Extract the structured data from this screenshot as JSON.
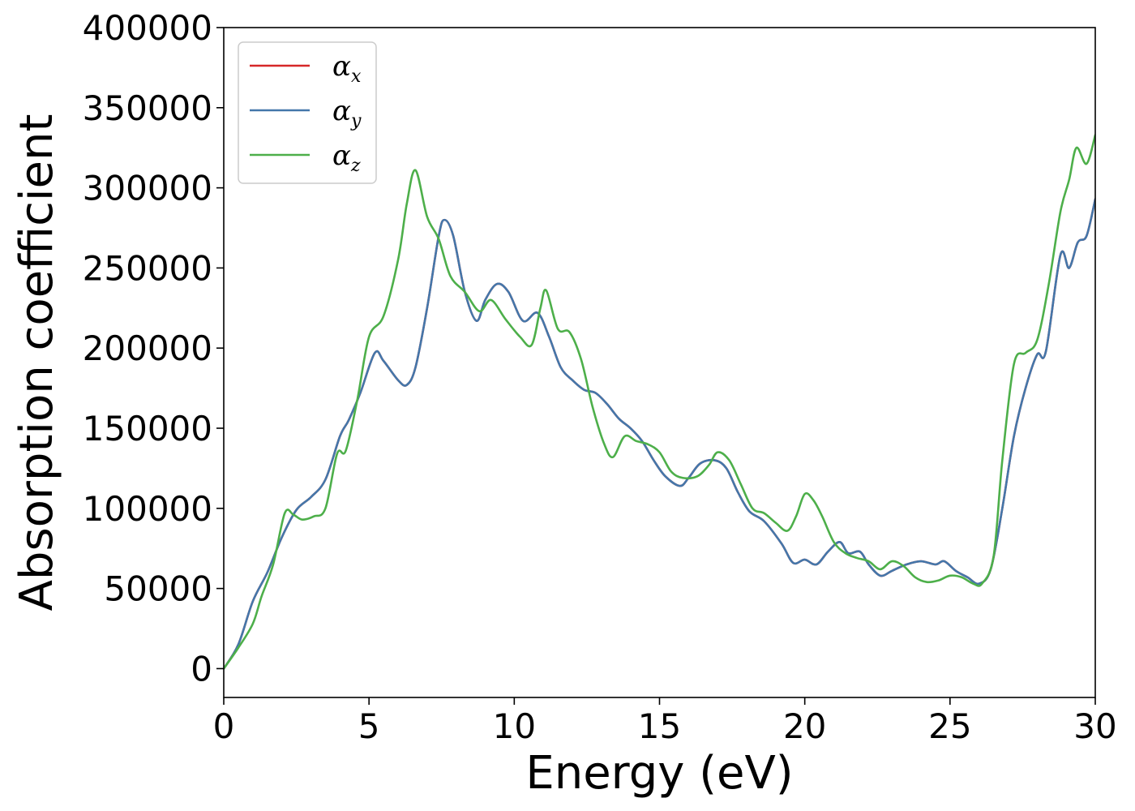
{
  "chart_data": {
    "type": "line",
    "xlabel": "Energy (eV)",
    "ylabel": "Absorption coefficient",
    "xlim": [
      0,
      30
    ],
    "ylim": [
      -18000,
      400000
    ],
    "x_ticks": [
      "0",
      "5",
      "10",
      "15",
      "20",
      "25",
      "30"
    ],
    "y_ticks": [
      "0",
      "50000",
      "100000",
      "150000",
      "200000",
      "250000",
      "300000",
      "350000",
      "400000"
    ],
    "grid": false,
    "legend_position": "top-left",
    "legend": [
      {
        "symbol": "α",
        "subscript": "x",
        "color": "#d62728"
      },
      {
        "symbol": "α",
        "subscript": "y",
        "color": "#4477aa"
      },
      {
        "symbol": "α",
        "subscript": "z",
        "color": "#4daf4a"
      }
    ],
    "series": [
      {
        "name": "αx",
        "color": "#d62728",
        "points": [
          [
            0,
            0
          ],
          [
            0.5,
            15000
          ],
          [
            1,
            42000
          ],
          [
            1.5,
            60000
          ],
          [
            2,
            82000
          ],
          [
            2.5,
            99000
          ],
          [
            3,
            107000
          ],
          [
            3.5,
            118000
          ],
          [
            4,
            145000
          ],
          [
            4.3,
            155000
          ],
          [
            4.7,
            172000
          ],
          [
            5.2,
            197000
          ],
          [
            5.5,
            192000
          ],
          [
            6,
            180000
          ],
          [
            6.3,
            177000
          ],
          [
            6.6,
            188000
          ],
          [
            7,
            225000
          ],
          [
            7.4,
            270000
          ],
          [
            7.6,
            280000
          ],
          [
            7.9,
            270000
          ],
          [
            8.3,
            235000
          ],
          [
            8.7,
            217000
          ],
          [
            9,
            230000
          ],
          [
            9.4,
            240000
          ],
          [
            9.8,
            235000
          ],
          [
            10.3,
            217000
          ],
          [
            10.8,
            222000
          ],
          [
            11.2,
            207000
          ],
          [
            11.6,
            188000
          ],
          [
            12,
            180000
          ],
          [
            12.4,
            174000
          ],
          [
            12.8,
            172000
          ],
          [
            13.2,
            165000
          ],
          [
            13.6,
            156000
          ],
          [
            14,
            150000
          ],
          [
            14.4,
            142000
          ],
          [
            14.8,
            130000
          ],
          [
            15.2,
            120000
          ],
          [
            15.7,
            114000
          ],
          [
            16,
            119000
          ],
          [
            16.4,
            128000
          ],
          [
            16.9,
            130000
          ],
          [
            17.3,
            125000
          ],
          [
            17.7,
            110000
          ],
          [
            18.1,
            98000
          ],
          [
            18.6,
            92000
          ],
          [
            19.2,
            78000
          ],
          [
            19.6,
            66000
          ],
          [
            20,
            68000
          ],
          [
            20.4,
            65000
          ],
          [
            20.8,
            73000
          ],
          [
            21.2,
            79000
          ],
          [
            21.5,
            72000
          ],
          [
            21.9,
            73000
          ],
          [
            22.2,
            65000
          ],
          [
            22.6,
            58000
          ],
          [
            23,
            61000
          ],
          [
            23.5,
            65000
          ],
          [
            24,
            67000
          ],
          [
            24.5,
            65000
          ],
          [
            24.8,
            67000
          ],
          [
            25.2,
            61000
          ],
          [
            25.6,
            57000
          ],
          [
            26,
            53000
          ],
          [
            26.4,
            62000
          ],
          [
            26.8,
            100000
          ],
          [
            27.2,
            145000
          ],
          [
            27.6,
            175000
          ],
          [
            28,
            196000
          ],
          [
            28.3,
            198000
          ],
          [
            28.8,
            258000
          ],
          [
            29.1,
            250000
          ],
          [
            29.4,
            266000
          ],
          [
            29.7,
            270000
          ],
          [
            30,
            293000
          ]
        ]
      },
      {
        "name": "αy",
        "color": "#4477aa",
        "points": [
          [
            0,
            0
          ],
          [
            0.5,
            15000
          ],
          [
            1,
            42000
          ],
          [
            1.5,
            60000
          ],
          [
            2,
            82000
          ],
          [
            2.5,
            99000
          ],
          [
            3,
            107000
          ],
          [
            3.5,
            118000
          ],
          [
            4,
            145000
          ],
          [
            4.3,
            155000
          ],
          [
            4.7,
            172000
          ],
          [
            5.2,
            197000
          ],
          [
            5.5,
            192000
          ],
          [
            6,
            180000
          ],
          [
            6.3,
            177000
          ],
          [
            6.6,
            188000
          ],
          [
            7,
            225000
          ],
          [
            7.4,
            270000
          ],
          [
            7.6,
            280000
          ],
          [
            7.9,
            270000
          ],
          [
            8.3,
            235000
          ],
          [
            8.7,
            217000
          ],
          [
            9,
            230000
          ],
          [
            9.4,
            240000
          ],
          [
            9.8,
            235000
          ],
          [
            10.3,
            217000
          ],
          [
            10.8,
            222000
          ],
          [
            11.2,
            207000
          ],
          [
            11.6,
            188000
          ],
          [
            12,
            180000
          ],
          [
            12.4,
            174000
          ],
          [
            12.8,
            172000
          ],
          [
            13.2,
            165000
          ],
          [
            13.6,
            156000
          ],
          [
            14,
            150000
          ],
          [
            14.4,
            142000
          ],
          [
            14.8,
            130000
          ],
          [
            15.2,
            120000
          ],
          [
            15.7,
            114000
          ],
          [
            16,
            119000
          ],
          [
            16.4,
            128000
          ],
          [
            16.9,
            130000
          ],
          [
            17.3,
            125000
          ],
          [
            17.7,
            110000
          ],
          [
            18.1,
            98000
          ],
          [
            18.6,
            92000
          ],
          [
            19.2,
            78000
          ],
          [
            19.6,
            66000
          ],
          [
            20,
            68000
          ],
          [
            20.4,
            65000
          ],
          [
            20.8,
            73000
          ],
          [
            21.2,
            79000
          ],
          [
            21.5,
            72000
          ],
          [
            21.9,
            73000
          ],
          [
            22.2,
            65000
          ],
          [
            22.6,
            58000
          ],
          [
            23,
            61000
          ],
          [
            23.5,
            65000
          ],
          [
            24,
            67000
          ],
          [
            24.5,
            65000
          ],
          [
            24.8,
            67000
          ],
          [
            25.2,
            61000
          ],
          [
            25.6,
            57000
          ],
          [
            26,
            53000
          ],
          [
            26.4,
            62000
          ],
          [
            26.8,
            100000
          ],
          [
            27.2,
            145000
          ],
          [
            27.6,
            175000
          ],
          [
            28,
            196000
          ],
          [
            28.3,
            198000
          ],
          [
            28.8,
            258000
          ],
          [
            29.1,
            250000
          ],
          [
            29.4,
            266000
          ],
          [
            29.7,
            270000
          ],
          [
            30,
            293000
          ]
        ]
      },
      {
        "name": "αz",
        "color": "#4daf4a",
        "points": [
          [
            0,
            0
          ],
          [
            0.5,
            13000
          ],
          [
            1,
            28000
          ],
          [
            1.3,
            45000
          ],
          [
            1.7,
            65000
          ],
          [
            2.1,
            97000
          ],
          [
            2.4,
            96000
          ],
          [
            2.7,
            93000
          ],
          [
            3.1,
            95000
          ],
          [
            3.5,
            100000
          ],
          [
            3.9,
            134000
          ],
          [
            4.2,
            136000
          ],
          [
            4.6,
            168000
          ],
          [
            5,
            207000
          ],
          [
            5.5,
            220000
          ],
          [
            6,
            255000
          ],
          [
            6.3,
            290000
          ],
          [
            6.6,
            311000
          ],
          [
            7,
            282000
          ],
          [
            7.4,
            268000
          ],
          [
            7.8,
            245000
          ],
          [
            8.3,
            235000
          ],
          [
            8.8,
            223000
          ],
          [
            9.2,
            230000
          ],
          [
            9.7,
            218000
          ],
          [
            10.2,
            207000
          ],
          [
            10.6,
            202000
          ],
          [
            10.9,
            225000
          ],
          [
            11.1,
            236000
          ],
          [
            11.5,
            212000
          ],
          [
            11.9,
            210000
          ],
          [
            12.3,
            193000
          ],
          [
            12.7,
            163000
          ],
          [
            13.1,
            140000
          ],
          [
            13.4,
            132000
          ],
          [
            13.8,
            145000
          ],
          [
            14.2,
            142000
          ],
          [
            14.6,
            140000
          ],
          [
            15,
            135000
          ],
          [
            15.4,
            123000
          ],
          [
            15.8,
            119000
          ],
          [
            16.3,
            120000
          ],
          [
            16.7,
            127000
          ],
          [
            17,
            135000
          ],
          [
            17.4,
            130000
          ],
          [
            17.8,
            115000
          ],
          [
            18.2,
            100000
          ],
          [
            18.6,
            97000
          ],
          [
            19,
            91000
          ],
          [
            19.4,
            86000
          ],
          [
            19.7,
            95000
          ],
          [
            20,
            109000
          ],
          [
            20.3,
            105000
          ],
          [
            20.6,
            95000
          ],
          [
            21,
            79000
          ],
          [
            21.4,
            72000
          ],
          [
            21.8,
            69000
          ],
          [
            22.2,
            67000
          ],
          [
            22.6,
            62000
          ],
          [
            23,
            67000
          ],
          [
            23.4,
            64000
          ],
          [
            23.8,
            57000
          ],
          [
            24.2,
            54000
          ],
          [
            24.6,
            55000
          ],
          [
            25,
            58000
          ],
          [
            25.4,
            57000
          ],
          [
            25.8,
            53000
          ],
          [
            26.1,
            53000
          ],
          [
            26.5,
            70000
          ],
          [
            26.8,
            130000
          ],
          [
            27.2,
            190000
          ],
          [
            27.6,
            197000
          ],
          [
            28,
            205000
          ],
          [
            28.4,
            240000
          ],
          [
            28.8,
            285000
          ],
          [
            29.1,
            305000
          ],
          [
            29.35,
            325000
          ],
          [
            29.7,
            315000
          ],
          [
            30,
            333000
          ]
        ]
      }
    ]
  }
}
